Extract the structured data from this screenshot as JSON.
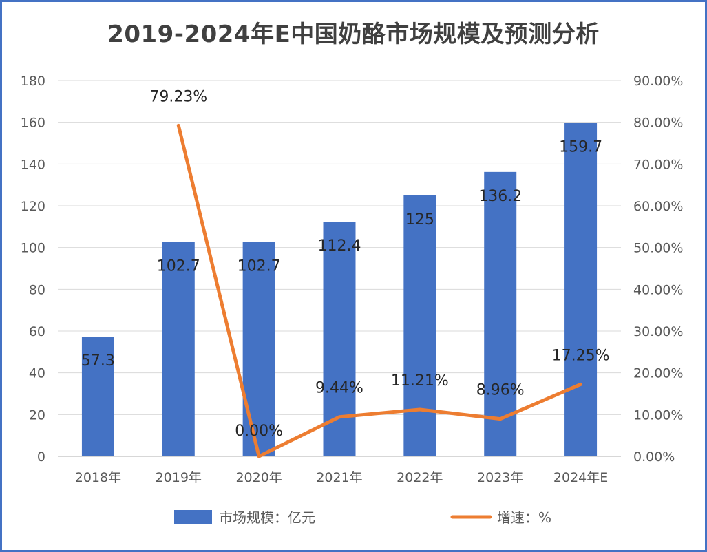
{
  "chart_data": {
    "type": "bar",
    "title": "2019-2024年E中国奶酪市场规模及预测分析",
    "categories": [
      "2018年",
      "2019年",
      "2020年",
      "2021年",
      "2022年",
      "2023年",
      "2024年E"
    ],
    "series": [
      {
        "name": "市场规模：亿元",
        "type": "bar",
        "axis": "left",
        "color": "#4472c4",
        "values": [
          57.3,
          102.7,
          102.7,
          112.4,
          125,
          136.2,
          159.7
        ],
        "labels": [
          "57.3",
          "102.7",
          "102.7",
          "112.4",
          "125",
          "136.2",
          "159.7"
        ]
      },
      {
        "name": "增速：%",
        "type": "line",
        "axis": "right",
        "color": "#ed7d31",
        "values": [
          null,
          79.23,
          0.0,
          9.44,
          11.21,
          8.96,
          17.25
        ],
        "labels": [
          "",
          "79.23%",
          "0.00%",
          "9.44%",
          "11.21%",
          "8.96%",
          "17.25%"
        ]
      }
    ],
    "y_left": {
      "min": 0,
      "max": 180,
      "step": 20,
      "ticks": [
        "0",
        "20",
        "40",
        "60",
        "80",
        "100",
        "120",
        "140",
        "160",
        "180"
      ]
    },
    "y_right": {
      "min": 0,
      "max": 90,
      "step": 10,
      "ticks": [
        "0.00%",
        "10.00%",
        "20.00%",
        "30.00%",
        "40.00%",
        "50.00%",
        "60.00%",
        "70.00%",
        "80.00%",
        "90.00%"
      ]
    },
    "grid": true,
    "legend": "bottom"
  }
}
